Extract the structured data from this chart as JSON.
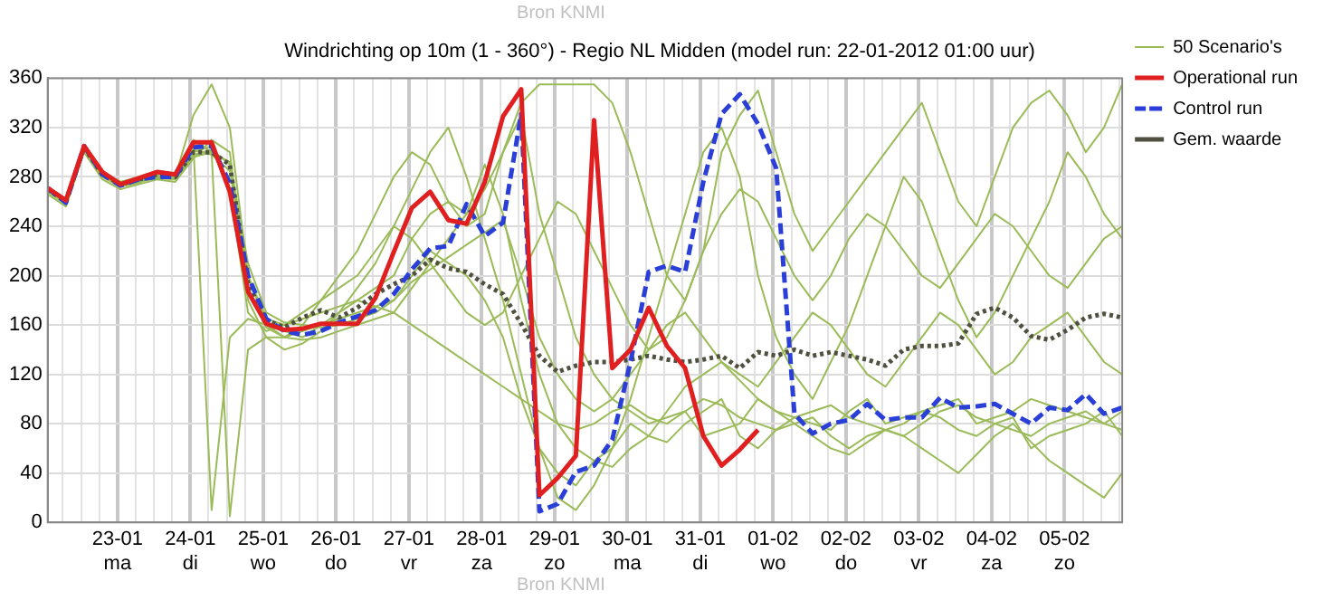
{
  "chart_data": {
    "type": "line",
    "title": "Windrichting op 10m (1 - 360°) - Regio NL Midden (model run: 22-01-2012 01:00 uur)",
    "annotations": [
      "Bron KNMI",
      "Bron KNMI"
    ],
    "x": [
      "2012-01-22T01:00",
      "2012-01-22T07:00",
      "2012-01-22T13:00",
      "2012-01-22T19:00",
      "2012-01-23T01:00",
      "2012-01-23T07:00",
      "2012-01-23T13:00",
      "2012-01-23T19:00",
      "2012-01-24T01:00",
      "2012-01-24T07:00",
      "2012-01-24T13:00",
      "2012-01-24T19:00",
      "2012-01-25T01:00",
      "2012-01-25T07:00",
      "2012-01-25T13:00",
      "2012-01-25T19:00",
      "2012-01-26T01:00",
      "2012-01-26T07:00",
      "2012-01-26T13:00",
      "2012-01-26T19:00",
      "2012-01-27T01:00",
      "2012-01-27T07:00",
      "2012-01-27T13:00",
      "2012-01-27T19:00",
      "2012-01-28T01:00",
      "2012-01-28T07:00",
      "2012-01-28T13:00",
      "2012-01-28T19:00",
      "2012-01-29T01:00",
      "2012-01-29T07:00",
      "2012-01-29T13:00",
      "2012-01-29T19:00",
      "2012-01-30T01:00",
      "2012-01-30T07:00",
      "2012-01-30T13:00",
      "2012-01-30T19:00",
      "2012-01-31T01:00",
      "2012-01-31T07:00",
      "2012-01-31T13:00",
      "2012-01-31T19:00",
      "2012-02-01T01:00",
      "2012-02-01T07:00",
      "2012-02-01T13:00",
      "2012-02-01T19:00",
      "2012-02-02T01:00",
      "2012-02-02T07:00",
      "2012-02-02T13:00",
      "2012-02-02T19:00",
      "2012-02-03T01:00",
      "2012-02-03T07:00",
      "2012-02-03T13:00",
      "2012-02-03T19:00",
      "2012-02-04T01:00",
      "2012-02-04T07:00",
      "2012-02-04T13:00",
      "2012-02-04T19:00",
      "2012-02-05T01:00",
      "2012-02-05T07:00",
      "2012-02-05T13:00",
      "2012-02-05T19:00"
    ],
    "series": [
      {
        "name": "50 Scenario's",
        "type": "line",
        "line_style": "solid",
        "color": "#9bbb59",
        "values": [
          268,
          258,
          303,
          280,
          272,
          275,
          283,
          281,
          305,
          10,
          150,
          165,
          160,
          155,
          150,
          160,
          170,
          180,
          190,
          200,
          230,
          250,
          260,
          240,
          250,
          300,
          330,
          250,
          200,
          150,
          120,
          100,
          90,
          80,
          85,
          90,
          70,
          75,
          80,
          100,
          90,
          85,
          80,
          75,
          90,
          100,
          80,
          85,
          90,
          95,
          100,
          80,
          85,
          90,
          100,
          95,
          90,
          85,
          80,
          90
        ]
      },
      {
        "type": "line",
        "line_style": "solid",
        "color": "#9bbb59",
        "values": [
          272,
          262,
          306,
          284,
          276,
          280,
          285,
          283,
          310,
          300,
          5,
          140,
          150,
          150,
          155,
          160,
          165,
          170,
          175,
          180,
          200,
          220,
          210,
          200,
          180,
          150,
          100,
          60,
          40,
          30,
          50,
          60,
          80,
          70,
          65,
          80,
          90,
          100,
          70,
          60,
          75,
          80,
          85,
          70,
          60,
          70,
          75,
          80,
          90,
          85,
          75,
          70,
          80,
          85,
          60,
          70,
          75,
          80,
          90,
          70
        ]
      },
      {
        "type": "line",
        "line_style": "solid",
        "color": "#9bbb59",
        "values": [
          270,
          260,
          305,
          282,
          275,
          278,
          282,
          280,
          330,
          355,
          320,
          200,
          160,
          150,
          160,
          180,
          200,
          220,
          250,
          280,
          300,
          290,
          260,
          250,
          270,
          300,
          340,
          355,
          355,
          355,
          355,
          340,
          300,
          250,
          200,
          180,
          220,
          300,
          330,
          350,
          300,
          250,
          220,
          240,
          260,
          280,
          300,
          320,
          340,
          300,
          260,
          240,
          280,
          320,
          340,
          350,
          330,
          300,
          320,
          355
        ]
      },
      {
        "type": "line",
        "line_style": "solid",
        "color": "#9bbb59",
        "values": [
          266,
          256,
          300,
          278,
          270,
          274,
          278,
          276,
          295,
          310,
          300,
          180,
          150,
          140,
          145,
          155,
          170,
          190,
          210,
          240,
          270,
          300,
          320,
          280,
          230,
          180,
          120,
          60,
          20,
          10,
          30,
          60,
          100,
          150,
          200,
          250,
          300,
          320,
          280,
          200,
          150,
          120,
          100,
          130,
          160,
          200,
          240,
          280,
          260,
          220,
          180,
          150,
          170,
          200,
          230,
          260,
          300,
          280,
          250,
          230
        ]
      },
      {
        "type": "line",
        "line_style": "solid",
        "color": "#9bbb59",
        "values": [
          270,
          260,
          304,
          281,
          274,
          277,
          281,
          280,
          300,
          305,
          270,
          170,
          155,
          160,
          165,
          170,
          175,
          180,
          175,
          170,
          160,
          150,
          140,
          130,
          120,
          110,
          100,
          90,
          80,
          75,
          80,
          90,
          95,
          85,
          80,
          90,
          100,
          95,
          85,
          80,
          75,
          85,
          90,
          95,
          85,
          80,
          75,
          70,
          80,
          90,
          95,
          85,
          80,
          75,
          70,
          80,
          85,
          90,
          80,
          75
        ]
      },
      {
        "type": "line",
        "line_style": "solid",
        "color": "#9bbb59",
        "values": [
          271,
          261,
          305,
          283,
          276,
          279,
          283,
          281,
          302,
          298,
          285,
          200,
          165,
          160,
          170,
          180,
          190,
          200,
          220,
          240,
          230,
          210,
          190,
          170,
          160,
          170,
          200,
          230,
          260,
          250,
          220,
          190,
          160,
          140,
          150,
          180,
          220,
          250,
          270,
          260,
          230,
          200,
          180,
          200,
          230,
          250,
          240,
          220,
          200,
          190,
          210,
          230,
          250,
          240,
          220,
          200,
          190,
          210,
          230,
          240
        ]
      },
      {
        "type": "line",
        "line_style": "solid",
        "color": "#9bbb59",
        "values": [
          269,
          259,
          304,
          281,
          273,
          276,
          280,
          279,
          298,
          302,
          290,
          190,
          158,
          150,
          148,
          150,
          155,
          160,
          165,
          170,
          190,
          210,
          230,
          250,
          290,
          250,
          180,
          120,
          80,
          60,
          50,
          45,
          60,
          70,
          90,
          110,
          120,
          130,
          115,
          100,
          90,
          80,
          70,
          60,
          55,
          65,
          75,
          70,
          60,
          50,
          40,
          55,
          70,
          80,
          65,
          50,
          40,
          30,
          20,
          40
        ]
      },
      {
        "type": "line",
        "line_style": "solid",
        "color": "#9bbb59",
        "values": [
          268,
          259,
          302,
          280,
          273,
          276,
          279,
          278,
          296,
          300,
          292,
          210,
          170,
          162,
          160,
          158,
          160,
          165,
          170,
          180,
          195,
          205,
          215,
          225,
          235,
          245,
          200,
          150,
          120,
          100,
          90,
          100,
          120,
          140,
          160,
          170,
          150,
          130,
          120,
          110,
          130,
          150,
          170,
          160,
          140,
          120,
          110,
          130,
          150,
          170,
          160,
          140,
          120,
          130,
          150,
          160,
          170,
          150,
          130,
          120
        ]
      },
      {
        "name": "Operational run",
        "type": "line",
        "line_style": "solid",
        "color": "#e02020",
        "values": [
          271,
          261,
          305,
          284,
          274,
          279,
          284,
          282,
          308,
          308,
          268,
          187,
          161,
          156,
          157,
          161,
          161,
          161,
          182,
          219,
          255,
          268,
          245,
          242,
          276,
          329,
          351,
          22,
          36,
          54,
          326,
          125,
          140,
          174,
          143,
          125,
          70,
          46,
          59,
          75,
          null,
          null,
          null,
          null,
          null,
          null,
          null,
          null,
          null,
          null,
          null,
          null,
          null,
          null,
          null,
          null,
          null,
          null,
          null,
          null
        ]
      },
      {
        "name": "Control run",
        "type": "line",
        "line_style": "dashed",
        "color": "#2a3ed8",
        "values": [
          271,
          259,
          305,
          282,
          273,
          278,
          280,
          280,
          304,
          305,
          275,
          200,
          165,
          155,
          152,
          155,
          162,
          167,
          172,
          185,
          205,
          222,
          224,
          258,
          232,
          243,
          331,
          9,
          15,
          41,
          46,
          67,
          130,
          203,
          208,
          203,
          276,
          331,
          347,
          323,
          287,
          88,
          72,
          80,
          83,
          96,
          83,
          85,
          85,
          101,
          93,
          94,
          96,
          88,
          80,
          93,
          91,
          104,
          88,
          93
        ]
      },
      {
        "name": "Gem. waarde",
        "type": "line",
        "line_style": "dotted",
        "color": "#505040",
        "values": [
          270,
          260,
          304,
          282,
          274,
          278,
          282,
          280,
          300,
          300,
          290,
          193,
          164,
          158,
          166,
          172,
          166,
          174,
          185,
          193,
          200,
          213,
          206,
          203,
          193,
          185,
          161,
          135,
          122,
          127,
          130,
          130,
          132,
          135,
          132,
          130,
          132,
          135,
          125,
          138,
          135,
          140,
          135,
          138,
          135,
          132,
          127,
          140,
          143,
          143,
          145,
          169,
          174,
          166,
          151,
          148,
          156,
          166,
          169,
          166
        ]
      }
    ],
    "xlim": [
      "2012-01-22T01:00",
      "2012-02-05T19:00"
    ],
    "xticks": [
      {
        "value": "2012-01-22T06:00",
        "label": null
      },
      {
        "value": "2012-01-22T12:00",
        "label": null
      },
      {
        "value": "2012-01-22T18:00",
        "label": null
      },
      {
        "value": "2012-01-23T00:00",
        "label": "23-01\nma"
      },
      {
        "value": "2012-01-23T06:00",
        "label": null
      },
      {
        "value": "2012-01-23T12:00",
        "label": null
      },
      {
        "value": "2012-01-23T18:00",
        "label": null
      },
      {
        "value": "2012-01-24T00:00",
        "label": "24-01\ndi"
      },
      {
        "value": "2012-01-24T06:00",
        "label": null
      },
      {
        "value": "2012-01-24T12:00",
        "label": null
      },
      {
        "value": "2012-01-24T18:00",
        "label": null
      },
      {
        "value": "2012-01-25T00:00",
        "label": "25-01\nwo"
      },
      {
        "value": "2012-01-25T06:00",
        "label": null
      },
      {
        "value": "2012-01-25T12:00",
        "label": null
      },
      {
        "value": "2012-01-25T18:00",
        "label": null
      },
      {
        "value": "2012-01-26T00:00",
        "label": "26-01\ndo"
      },
      {
        "value": "2012-01-26T06:00",
        "label": null
      },
      {
        "value": "2012-01-26T12:00",
        "label": null
      },
      {
        "value": "2012-01-26T18:00",
        "label": null
      },
      {
        "value": "2012-01-27T00:00",
        "label": "27-01\nvr"
      },
      {
        "value": "2012-01-27T06:00",
        "label": null
      },
      {
        "value": "2012-01-27T12:00",
        "label": null
      },
      {
        "value": "2012-01-27T18:00",
        "label": null
      },
      {
        "value": "2012-01-28T00:00",
        "label": "28-01\nza"
      },
      {
        "value": "2012-01-28T06:00",
        "label": null
      },
      {
        "value": "2012-01-28T12:00",
        "label": null
      },
      {
        "value": "2012-01-28T18:00",
        "label": null
      },
      {
        "value": "2012-01-29T00:00",
        "label": "29-01\nzo"
      },
      {
        "value": "2012-01-29T06:00",
        "label": null
      },
      {
        "value": "2012-01-29T12:00",
        "label": null
      },
      {
        "value": "2012-01-29T18:00",
        "label": null
      },
      {
        "value": "2012-01-30T00:00",
        "label": "30-01\nma"
      },
      {
        "value": "2012-01-30T06:00",
        "label": null
      },
      {
        "value": "2012-01-30T12:00",
        "label": null
      },
      {
        "value": "2012-01-30T18:00",
        "label": null
      },
      {
        "value": "2012-01-31T00:00",
        "label": "31-01\ndi"
      },
      {
        "value": "2012-01-31T06:00",
        "label": null
      },
      {
        "value": "2012-01-31T12:00",
        "label": null
      },
      {
        "value": "2012-01-31T18:00",
        "label": null
      },
      {
        "value": "2012-02-01T00:00",
        "label": "01-02\nwo"
      },
      {
        "value": "2012-02-01T06:00",
        "label": null
      },
      {
        "value": "2012-02-01T12:00",
        "label": null
      },
      {
        "value": "2012-02-01T18:00",
        "label": null
      },
      {
        "value": "2012-02-02T00:00",
        "label": "02-02\ndo"
      },
      {
        "value": "2012-02-02T06:00",
        "label": null
      },
      {
        "value": "2012-02-02T12:00",
        "label": null
      },
      {
        "value": "2012-02-02T18:00",
        "label": null
      },
      {
        "value": "2012-02-03T00:00",
        "label": "03-02\nvr"
      },
      {
        "value": "2012-02-03T06:00",
        "label": null
      },
      {
        "value": "2012-02-03T12:00",
        "label": null
      },
      {
        "value": "2012-02-03T18:00",
        "label": null
      },
      {
        "value": "2012-02-04T00:00",
        "label": "04-02\nza"
      },
      {
        "value": "2012-02-04T06:00",
        "label": null
      },
      {
        "value": "2012-02-04T12:00",
        "label": null
      },
      {
        "value": "2012-02-04T18:00",
        "label": null
      },
      {
        "value": "2012-02-05T00:00",
        "label": "05-02\nzo"
      },
      {
        "value": "2012-02-05T06:00",
        "label": null
      },
      {
        "value": "2012-02-05T12:00",
        "label": null
      },
      {
        "value": "2012-02-05T18:00",
        "label": null
      }
    ],
    "ylim": [
      0,
      360
    ],
    "yticks": [
      0,
      40,
      80,
      120,
      160,
      200,
      240,
      280,
      320,
      360
    ],
    "grid": true,
    "legend": "top right",
    "marker": "none"
  }
}
